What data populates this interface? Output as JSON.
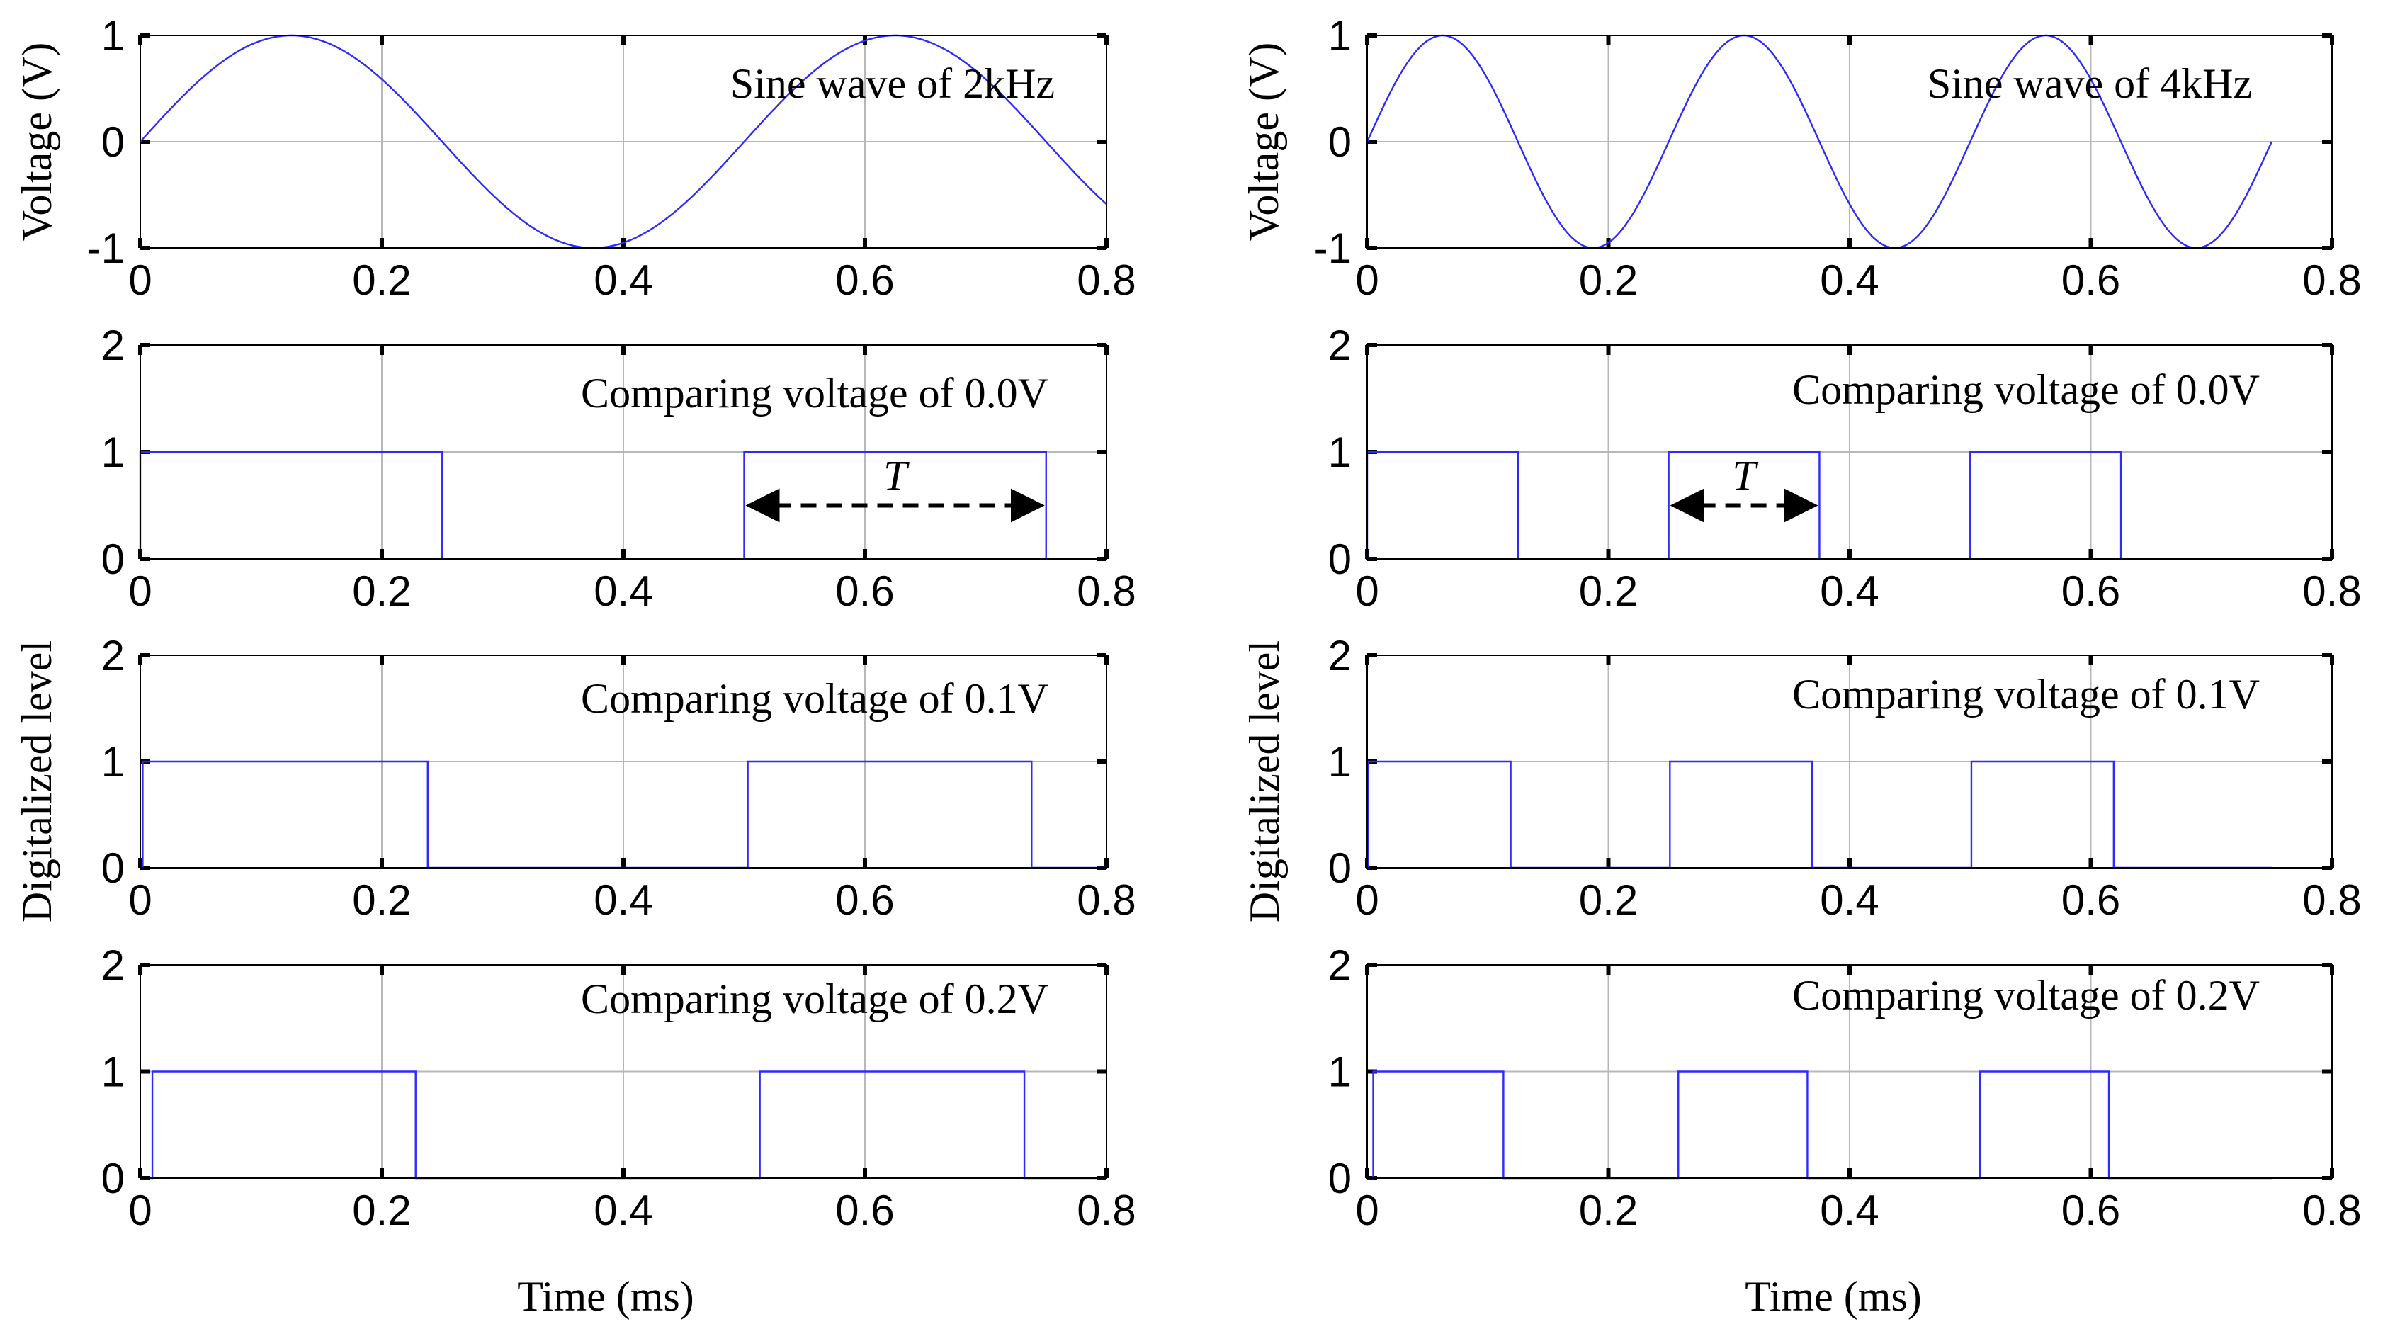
{
  "chart_data": [
    {
      "type": "line",
      "column": "left",
      "annotation": "Sine wave of 2kHz",
      "ylabel": "Voltage (V)",
      "xlim": [
        0,
        0.8
      ],
      "ylim": [
        -1,
        1
      ],
      "xticks": [
        "0",
        "0.2",
        "0.4",
        "0.6",
        "0.8"
      ],
      "yticks": [
        "-1",
        "0",
        "1"
      ],
      "series": [
        {
          "name": "sine",
          "frequency_khz": 2,
          "amplitude_v": 1,
          "x_start": 0,
          "x_end": 0.8
        }
      ]
    },
    {
      "type": "line",
      "column": "left",
      "annotation": "Comparing voltage of 0.0V",
      "ylim": [
        0,
        2
      ],
      "xlim": [
        0,
        0.8
      ],
      "xticks": [
        "0",
        "0.2",
        "0.4",
        "0.6",
        "0.8"
      ],
      "yticks": [
        "0",
        "1",
        "2"
      ],
      "series": [
        {
          "name": "digital",
          "high_intervals": [
            [
              0,
              0.25
            ],
            [
              0.5,
              0.75
            ]
          ]
        }
      ],
      "period_marker": {
        "label": "T",
        "x_start": 0.5,
        "x_end": 0.75
      }
    },
    {
      "type": "line",
      "column": "left",
      "annotation": "Comparing voltage of 0.1V",
      "ylim": [
        0,
        2
      ],
      "xlim": [
        0,
        0.8
      ],
      "xticks": [
        "0",
        "0.2",
        "0.4",
        "0.6",
        "0.8"
      ],
      "yticks": [
        "0",
        "1",
        "2"
      ],
      "series": [
        {
          "name": "digital",
          "high_intervals": [
            [
              0.002,
              0.238
            ],
            [
              0.503,
              0.738
            ]
          ]
        }
      ]
    },
    {
      "type": "line",
      "column": "left",
      "annotation": "Comparing voltage of 0.2V",
      "ylim": [
        0,
        2
      ],
      "xlim": [
        0,
        0.8
      ],
      "xticks": [
        "0",
        "0.2",
        "0.4",
        "0.6",
        "0.8"
      ],
      "yticks": [
        "0",
        "1",
        "2"
      ],
      "series": [
        {
          "name": "digital",
          "high_intervals": [
            [
              0.01,
              0.228
            ],
            [
              0.513,
              0.732
            ]
          ]
        }
      ]
    },
    {
      "type": "line",
      "column": "right",
      "annotation": "Sine wave of 4kHz",
      "ylabel": "Voltage (V)",
      "xlim": [
        0,
        0.8
      ],
      "ylim": [
        -1,
        1
      ],
      "xticks": [
        "0",
        "0.2",
        "0.4",
        "0.6",
        "0.8"
      ],
      "yticks": [
        "-1",
        "0",
        "1"
      ],
      "series": [
        {
          "name": "sine",
          "frequency_khz": 4,
          "amplitude_v": 1,
          "x_start": 0,
          "x_end": 0.75
        }
      ]
    },
    {
      "type": "line",
      "column": "right",
      "annotation": "Comparing voltage of 0.0V",
      "ylim": [
        0,
        2
      ],
      "xlim": [
        0,
        0.8
      ],
      "xticks": [
        "0",
        "0.2",
        "0.4",
        "0.6",
        "0.8"
      ],
      "yticks": [
        "0",
        "1",
        "2"
      ],
      "series": [
        {
          "name": "digital",
          "high_intervals": [
            [
              0,
              0.125
            ],
            [
              0.25,
              0.375
            ],
            [
              0.5,
              0.625
            ]
          ],
          "x_end": 0.75
        }
      ],
      "period_marker": {
        "label": "T",
        "x_start": 0.25,
        "x_end": 0.375
      }
    },
    {
      "type": "line",
      "column": "right",
      "annotation": "Comparing voltage of 0.1V",
      "ylim": [
        0,
        2
      ],
      "xlim": [
        0,
        0.8
      ],
      "xticks": [
        "0",
        "0.2",
        "0.4",
        "0.6",
        "0.8"
      ],
      "yticks": [
        "0",
        "1",
        "2"
      ],
      "series": [
        {
          "name": "digital",
          "high_intervals": [
            [
              0.001,
              0.119
            ],
            [
              0.251,
              0.369
            ],
            [
              0.501,
              0.619
            ]
          ],
          "x_end": 0.75
        }
      ]
    },
    {
      "type": "line",
      "column": "right",
      "annotation": "Comparing voltage of 0.2V",
      "ylim": [
        0,
        2
      ],
      "xlim": [
        0,
        0.8
      ],
      "xticks": [
        "0",
        "0.2",
        "0.4",
        "0.6",
        "0.8"
      ],
      "yticks": [
        "0",
        "1",
        "2"
      ],
      "series": [
        {
          "name": "digital",
          "high_intervals": [
            [
              0.005,
              0.113
            ],
            [
              0.258,
              0.365
            ],
            [
              0.508,
              0.615
            ]
          ],
          "x_end": 0.75
        }
      ]
    }
  ],
  "labels": {
    "digital_ylabel": "Digitalized level",
    "xlabel": "Time (ms)"
  },
  "colors": {
    "trace": "#2b2bff",
    "grid": "#b8b8b8"
  }
}
